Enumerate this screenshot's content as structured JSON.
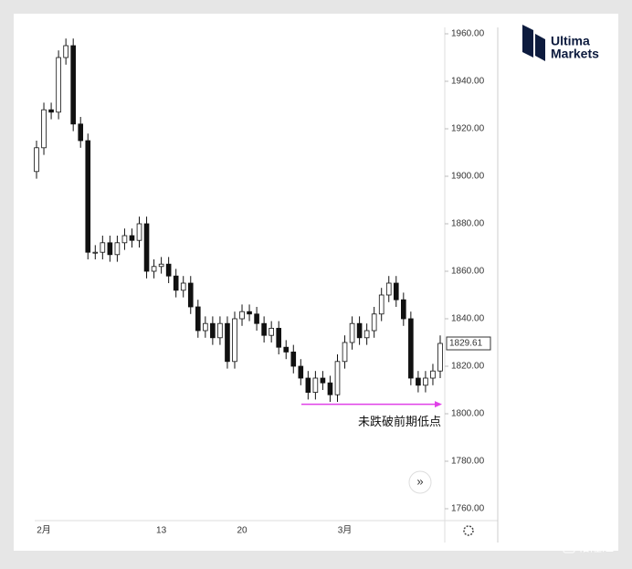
{
  "chart_data": {
    "type": "candlestick",
    "logo": {
      "line1": "Ultima",
      "line2": "Markets"
    },
    "watermark": "格隆汇",
    "categories": [
      null,
      "2月",
      null,
      null,
      null,
      null,
      null,
      null,
      null,
      null,
      null,
      null,
      null,
      null,
      null,
      null,
      null,
      "13",
      null,
      null,
      null,
      null,
      null,
      null,
      null,
      null,
      null,
      null,
      "20",
      null,
      null,
      null,
      null,
      null,
      null,
      null,
      null,
      null,
      null,
      null,
      null,
      null,
      "3月",
      null,
      null,
      null,
      null,
      null,
      null,
      null,
      null,
      null,
      null,
      null,
      null,
      null
    ],
    "open": [
      1902,
      1912,
      1928,
      1927,
      1950,
      1955,
      1922,
      1915,
      1868,
      1868,
      1872,
      1867,
      1872,
      1875,
      1873,
      1880,
      1860,
      1862,
      1863,
      1858,
      1852,
      1855,
      1845,
      1835,
      1838,
      1832,
      1838,
      1822,
      1840,
      1843,
      1842,
      1838,
      1833,
      1836,
      1828,
      1826,
      1820,
      1815,
      1809,
      1815,
      1813,
      1808,
      1822,
      1830,
      1838,
      1832,
      1835,
      1842,
      1850,
      1855,
      1848,
      1840,
      1815,
      1812,
      1815,
      1818
    ],
    "high": [
      1915,
      1931,
      1931,
      1953,
      1958,
      1958,
      1925,
      1918,
      1871,
      1875,
      1875,
      1875,
      1878,
      1878,
      1883,
      1883,
      1865,
      1866,
      1866,
      1861,
      1858,
      1858,
      1848,
      1841,
      1841,
      1841,
      1841,
      1843,
      1846,
      1846,
      1845,
      1841,
      1839,
      1839,
      1831,
      1829,
      1823,
      1818,
      1818,
      1818,
      1816,
      1825,
      1833,
      1841,
      1841,
      1838,
      1845,
      1853,
      1858,
      1858,
      1851,
      1843,
      1818,
      1818,
      1821,
      1833
    ],
    "low": [
      1899,
      1909,
      1924,
      1924,
      1947,
      1919,
      1912,
      1865,
      1865,
      1865,
      1864,
      1864,
      1869,
      1870,
      1870,
      1857,
      1857,
      1859,
      1855,
      1849,
      1849,
      1842,
      1832,
      1832,
      1829,
      1829,
      1819,
      1819,
      1837,
      1839,
      1835,
      1830,
      1830,
      1825,
      1823,
      1817,
      1812,
      1806,
      1806,
      1810,
      1805,
      1805,
      1819,
      1827,
      1829,
      1829,
      1832,
      1839,
      1847,
      1845,
      1837,
      1812,
      1809,
      1809,
      1812,
      1815
    ],
    "close": [
      1912,
      1928,
      1927,
      1950,
      1955,
      1922,
      1915,
      1868,
      1868,
      1872,
      1867,
      1872,
      1875,
      1873,
      1880,
      1860,
      1862,
      1863,
      1858,
      1852,
      1855,
      1845,
      1835,
      1838,
      1832,
      1838,
      1822,
      1840,
      1843,
      1842,
      1838,
      1833,
      1836,
      1828,
      1826,
      1820,
      1815,
      1809,
      1815,
      1813,
      1808,
      1822,
      1830,
      1838,
      1832,
      1835,
      1842,
      1850,
      1855,
      1848,
      1840,
      1815,
      1812,
      1815,
      1818,
      1829.61
    ],
    "up_color": "#ffffff",
    "down_color": "#111111",
    "ylim": [
      1752,
      1970
    ],
    "yticks": [
      {
        "value": 1760,
        "label": "1760.00"
      },
      {
        "value": 1780,
        "label": "1780.00"
      },
      {
        "value": 1800,
        "label": "1800.00"
      },
      {
        "value": 1820,
        "label": "1820.00"
      },
      {
        "value": 1840,
        "label": "1840.00"
      },
      {
        "value": 1860,
        "label": "1860.00"
      },
      {
        "value": 1880,
        "label": "1880.00"
      },
      {
        "value": 1900,
        "label": "1900.00"
      },
      {
        "value": 1920,
        "label": "1920.00"
      },
      {
        "value": 1940,
        "label": "1940.00"
      },
      {
        "value": 1960,
        "label": "1960.00"
      }
    ],
    "annotation": {
      "text": "未跌破前期低点",
      "value": 1804,
      "color": "#e040e8"
    }
  }
}
